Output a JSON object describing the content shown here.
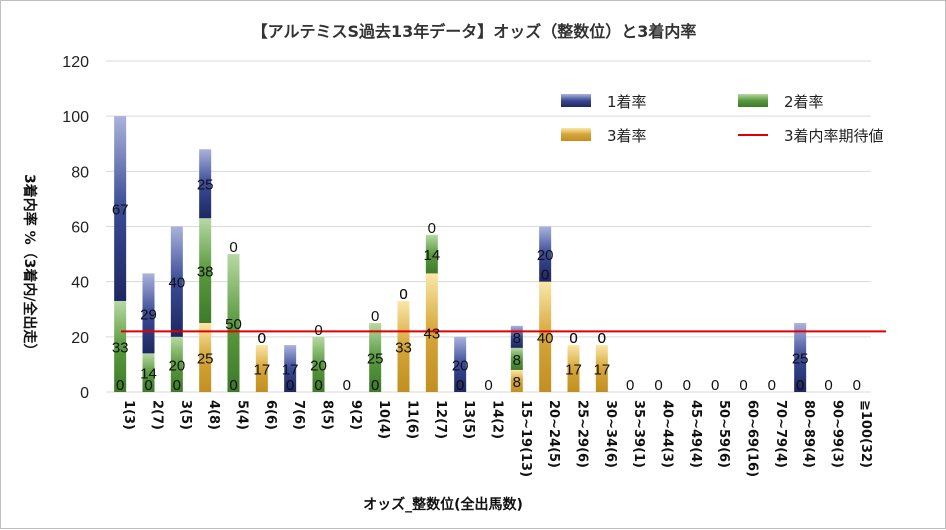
{
  "chart_data": {
    "type": "bar",
    "stacked": true,
    "title": "【アルテミスS過去13年データ】オッズ（整数位）と3着内率",
    "xlabel": "オッズ_整数位(全出馬数)",
    "ylabel": "3着内率 %（3着内/全出走）",
    "ylim": [
      0,
      120
    ],
    "yticks": [
      0,
      20,
      40,
      60,
      80,
      100,
      120
    ],
    "grid": true,
    "legend_position": "top-right",
    "categories": [
      "1(3)",
      "2(7)",
      "3(5)",
      "4(8)",
      "5(4)",
      "6(6)",
      "7(6)",
      "8(5)",
      "9(2)",
      "10(4)",
      "11(6)",
      "12(7)",
      "13(5)",
      "14(2)",
      "15~19(13)",
      "20~24(5)",
      "25~29(6)",
      "30~34(6)",
      "35~39(1)",
      "40~44(3)",
      "45~49(4)",
      "50~59(6)",
      "60~69(16)",
      "70~79(4)",
      "80~89(4)",
      "90~99(3)",
      "≧100(32)"
    ],
    "series": [
      {
        "name": "1着率",
        "color": "#3a4a96",
        "values": [
          67,
          29,
          40,
          25,
          0,
          0,
          17,
          0,
          0,
          0,
          0,
          0,
          20,
          0,
          8,
          20,
          0,
          0,
          0,
          0,
          0,
          0,
          0,
          0,
          25,
          0,
          0
        ]
      },
      {
        "name": "2着率",
        "color": "#5a9a3e",
        "values": [
          33,
          14,
          20,
          38,
          50,
          0,
          0,
          20,
          0,
          25,
          0,
          14,
          0,
          0,
          8,
          0,
          0,
          0,
          0,
          0,
          0,
          0,
          0,
          0,
          0,
          0,
          0
        ]
      },
      {
        "name": "3着率",
        "color": "#d4a537",
        "values": [
          0,
          0,
          0,
          25,
          0,
          17,
          0,
          0,
          0,
          0,
          33,
          43,
          0,
          0,
          8,
          40,
          17,
          17,
          0,
          0,
          0,
          0,
          0,
          0,
          0,
          0,
          0
        ]
      }
    ],
    "reference_line": {
      "name": "3着内率期待値",
      "value": 22,
      "color": "#e00000"
    }
  }
}
